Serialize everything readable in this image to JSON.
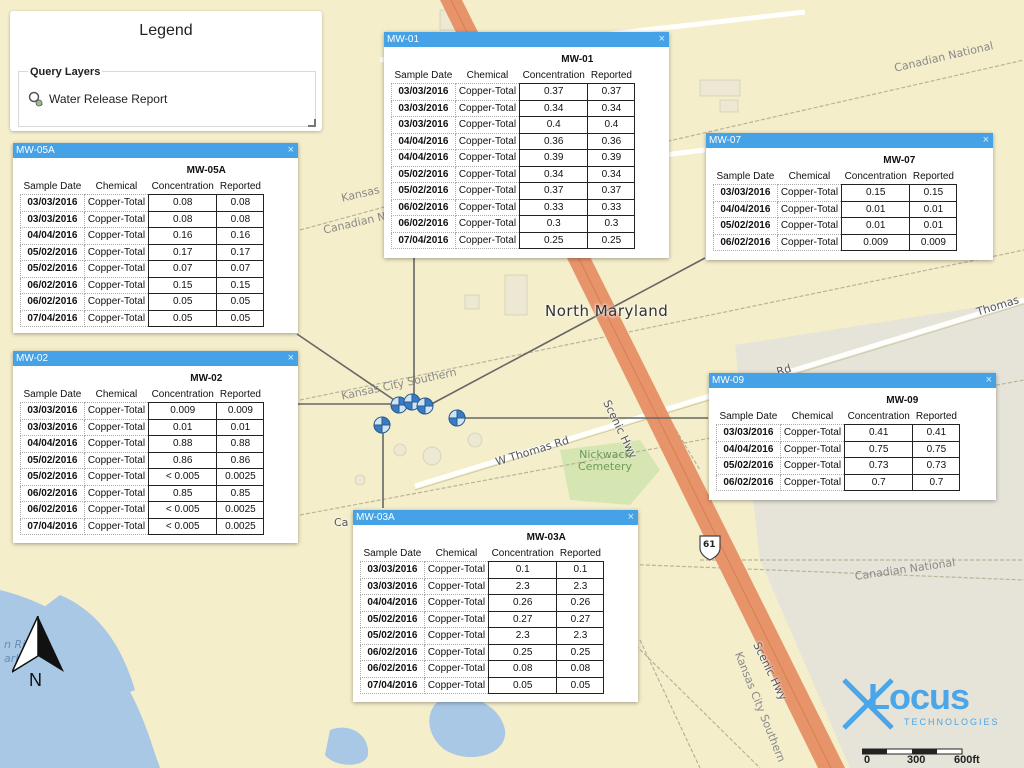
{
  "legend": {
    "title": "Legend",
    "group_title": "Query Layers",
    "layer_label": "Water Release Report"
  },
  "map_labels": {
    "north_maryland": "North Maryland",
    "scenic_hwy_1": "Scenic Hwy",
    "scenic_hwy_2": "Scenic Hwy",
    "w_thomas_rd": "W Thomas Rd",
    "thomas_rd": "Thomas",
    "rd": "Rd",
    "cemetery": "Nickwack\nCemetery",
    "canadian_national_1": "Canadian National",
    "canadian_national_2": "Canadian National",
    "canadian_national_3": "Canadian National",
    "kansas_city_southern_1": "Kansas City Southern",
    "kansas_city_southern_2": "Kansas City Southern",
    "kansas_1": "Kansas",
    "highway_shield": "61",
    "water_1": "n Ri",
    "water_2": "arbor",
    "ca": "Ca"
  },
  "headers": {
    "date": "Sample Date",
    "chemical": "Chemical",
    "concentration": "Concentration",
    "reported": "Reported",
    "close": "×"
  },
  "popups": {
    "mw01": {
      "id": "MW-01",
      "rows": [
        {
          "date": "03/03/2016",
          "chemical": "Copper-Total",
          "concentration": "0.37",
          "reported": "0.37"
        },
        {
          "date": "03/03/2016",
          "chemical": "Copper-Total",
          "concentration": "0.34",
          "reported": "0.34"
        },
        {
          "date": "03/03/2016",
          "chemical": "Copper-Total",
          "concentration": "0.4",
          "reported": "0.4"
        },
        {
          "date": "04/04/2016",
          "chemical": "Copper-Total",
          "concentration": "0.36",
          "reported": "0.36"
        },
        {
          "date": "04/04/2016",
          "chemical": "Copper-Total",
          "concentration": "0.39",
          "reported": "0.39"
        },
        {
          "date": "05/02/2016",
          "chemical": "Copper-Total",
          "concentration": "0.34",
          "reported": "0.34"
        },
        {
          "date": "05/02/2016",
          "chemical": "Copper-Total",
          "concentration": "0.37",
          "reported": "0.37"
        },
        {
          "date": "06/02/2016",
          "chemical": "Copper-Total",
          "concentration": "0.33",
          "reported": "0.33"
        },
        {
          "date": "06/02/2016",
          "chemical": "Copper-Total",
          "concentration": "0.3",
          "reported": "0.3"
        },
        {
          "date": "07/04/2016",
          "chemical": "Copper-Total",
          "concentration": "0.25",
          "reported": "0.25"
        }
      ]
    },
    "mw05a": {
      "id": "MW-05A",
      "rows": [
        {
          "date": "03/03/2016",
          "chemical": "Copper-Total",
          "concentration": "0.08",
          "reported": "0.08"
        },
        {
          "date": "03/03/2016",
          "chemical": "Copper-Total",
          "concentration": "0.08",
          "reported": "0.08"
        },
        {
          "date": "04/04/2016",
          "chemical": "Copper-Total",
          "concentration": "0.16",
          "reported": "0.16"
        },
        {
          "date": "05/02/2016",
          "chemical": "Copper-Total",
          "concentration": "0.17",
          "reported": "0.17"
        },
        {
          "date": "05/02/2016",
          "chemical": "Copper-Total",
          "concentration": "0.07",
          "reported": "0.07"
        },
        {
          "date": "06/02/2016",
          "chemical": "Copper-Total",
          "concentration": "0.15",
          "reported": "0.15"
        },
        {
          "date": "06/02/2016",
          "chemical": "Copper-Total",
          "concentration": "0.05",
          "reported": "0.05"
        },
        {
          "date": "07/04/2016",
          "chemical": "Copper-Total",
          "concentration": "0.05",
          "reported": "0.05"
        }
      ]
    },
    "mw07": {
      "id": "MW-07",
      "rows": [
        {
          "date": "03/03/2016",
          "chemical": "Copper-Total",
          "concentration": "0.15",
          "reported": "0.15"
        },
        {
          "date": "04/04/2016",
          "chemical": "Copper-Total",
          "concentration": "0.01",
          "reported": "0.01"
        },
        {
          "date": "05/02/2016",
          "chemical": "Copper-Total",
          "concentration": "0.01",
          "reported": "0.01"
        },
        {
          "date": "06/02/2016",
          "chemical": "Copper-Total",
          "concentration": "0.009",
          "reported": "0.009"
        }
      ]
    },
    "mw02": {
      "id": "MW-02",
      "rows": [
        {
          "date": "03/03/2016",
          "chemical": "Copper-Total",
          "concentration": "0.009",
          "reported": "0.009"
        },
        {
          "date": "03/03/2016",
          "chemical": "Copper-Total",
          "concentration": "0.01",
          "reported": "0.01"
        },
        {
          "date": "04/04/2016",
          "chemical": "Copper-Total",
          "concentration": "0.88",
          "reported": "0.88"
        },
        {
          "date": "05/02/2016",
          "chemical": "Copper-Total",
          "concentration": "0.86",
          "reported": "0.86"
        },
        {
          "date": "05/02/2016",
          "chemical": "Copper-Total",
          "concentration": "< 0.005",
          "reported": "0.0025"
        },
        {
          "date": "06/02/2016",
          "chemical": "Copper-Total",
          "concentration": "0.85",
          "reported": "0.85"
        },
        {
          "date": "06/02/2016",
          "chemical": "Copper-Total",
          "concentration": "< 0.005",
          "reported": "0.0025"
        },
        {
          "date": "07/04/2016",
          "chemical": "Copper-Total",
          "concentration": "< 0.005",
          "reported": "0.0025"
        }
      ]
    },
    "mw09": {
      "id": "MW-09",
      "rows": [
        {
          "date": "03/03/2016",
          "chemical": "Copper-Total",
          "concentration": "0.41",
          "reported": "0.41"
        },
        {
          "date": "04/04/2016",
          "chemical": "Copper-Total",
          "concentration": "0.75",
          "reported": "0.75"
        },
        {
          "date": "05/02/2016",
          "chemical": "Copper-Total",
          "concentration": "0.73",
          "reported": "0.73"
        },
        {
          "date": "06/02/2016",
          "chemical": "Copper-Total",
          "concentration": "0.7",
          "reported": "0.7"
        }
      ]
    },
    "mw03a": {
      "id": "MW-03A",
      "rows": [
        {
          "date": "03/03/2016",
          "chemical": "Copper-Total",
          "concentration": "0.1",
          "reported": "0.1"
        },
        {
          "date": "03/03/2016",
          "chemical": "Copper-Total",
          "concentration": "2.3",
          "reported": "2.3"
        },
        {
          "date": "04/04/2016",
          "chemical": "Copper-Total",
          "concentration": "0.26",
          "reported": "0.26"
        },
        {
          "date": "05/02/2016",
          "chemical": "Copper-Total",
          "concentration": "0.27",
          "reported": "0.27"
        },
        {
          "date": "05/02/2016",
          "chemical": "Copper-Total",
          "concentration": "2.3",
          "reported": "2.3"
        },
        {
          "date": "06/02/2016",
          "chemical": "Copper-Total",
          "concentration": "0.25",
          "reported": "0.25"
        },
        {
          "date": "06/02/2016",
          "chemical": "Copper-Total",
          "concentration": "0.08",
          "reported": "0.08"
        },
        {
          "date": "07/04/2016",
          "chemical": "Copper-Total",
          "concentration": "0.05",
          "reported": "0.05"
        }
      ]
    }
  },
  "north_arrow": {
    "label": "N"
  },
  "scale_bar": {
    "ticks": [
      "0",
      "300",
      "600ft"
    ]
  },
  "logo": {
    "word": "Locus",
    "sub": "TECHNOLOGIES"
  },
  "colors": {
    "land": "#f4eecb",
    "water": "#a8c8e6",
    "highway": "#e8946a",
    "popup_header": "#46a2e6",
    "cemetery": "#d6e6b3",
    "developed": "#e6e3d8"
  }
}
